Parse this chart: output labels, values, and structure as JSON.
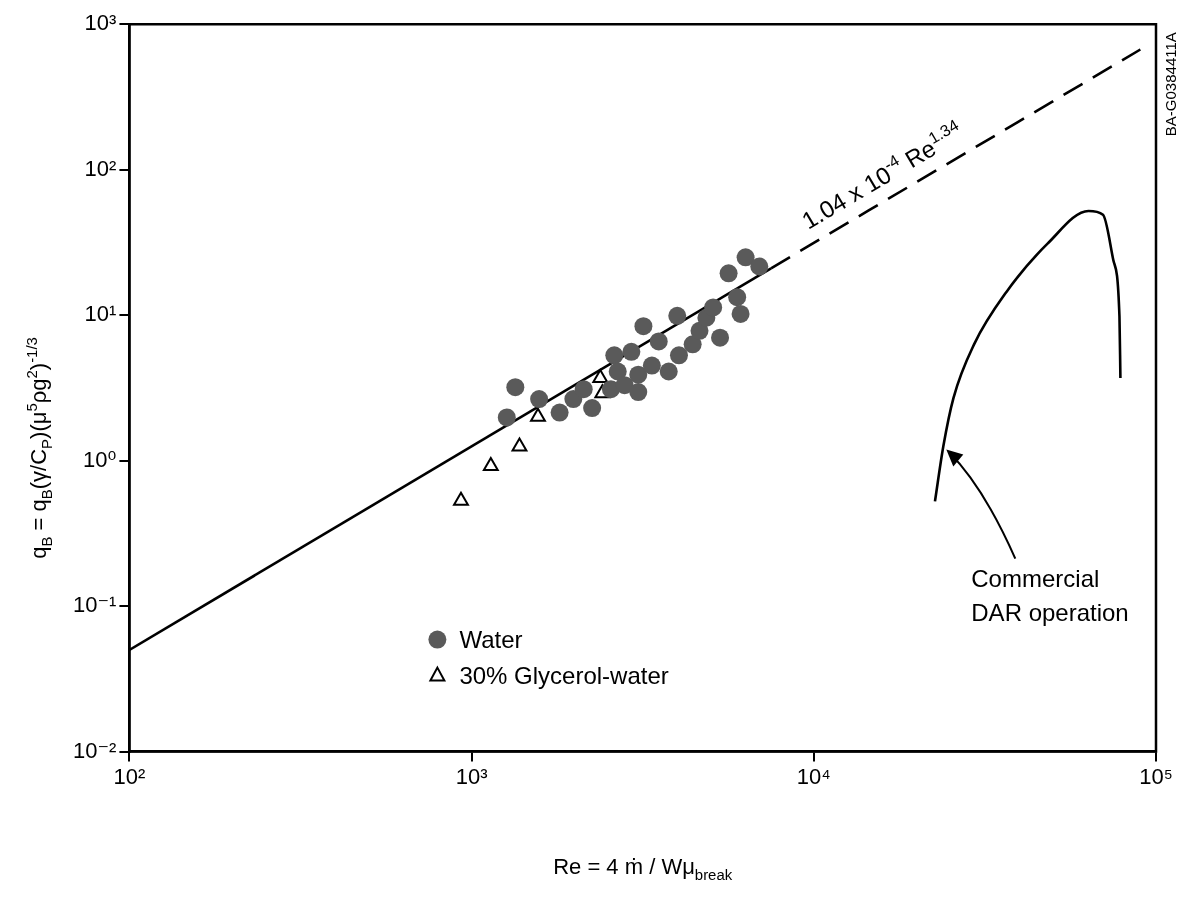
{
  "chart_data": {
    "type": "scatter",
    "xlabel": "Re = 4 ṁ / Wμ$_{break}$",
    "ylabel": "q$_{B}$ = q$_{B}$(γ/C$_{P}$)(μ$^{5}$ρg$^{2}$)$^{-1/3}$",
    "log": "xy",
    "grid": false,
    "legend": "bottom left",
    "xlim": [
      100,
      100000
    ],
    "xticks": [
      {
        "value": 100,
        "label": "10²"
      },
      {
        "value": 1000,
        "label": "10³"
      },
      {
        "value": 10000,
        "label": "10⁴"
      },
      {
        "value": 100000,
        "label": "10⁵"
      }
    ],
    "ylim": [
      0.01,
      1000
    ],
    "yticks": [
      {
        "value": 0.01,
        "label": "10⁻²"
      },
      {
        "value": 0.1,
        "label": "10⁻¹"
      },
      {
        "value": 1,
        "label": "10⁰"
      },
      {
        "value": 10,
        "label": "10¹"
      },
      {
        "value": 100,
        "label": "10²"
      },
      {
        "value": 1000,
        "label": "10³"
      }
    ],
    "series": [
      {
        "name": "Water",
        "type": "scatter",
        "marker": "circle",
        "color": "#5a5a5a",
        "x": [
          1342,
          1267,
          1575,
          1808,
          1983,
          2126,
          2250,
          2553,
          2612,
          2930,
          2673,
          2800,
          3069,
          3069,
          3177,
          3522,
          3363,
          3767,
          3990,
          4036,
          4426,
          4634,
          4853,
          5080,
          5321,
          5970,
          6110,
          5637,
          6320,
          6930
        ],
        "values": [
          3.2,
          1.98,
          2.65,
          2.14,
          2.65,
          3.1,
          2.3,
          3.1,
          5.3,
          5.6,
          4.1,
          3.3,
          3.9,
          2.96,
          8.4,
          6.6,
          4.5,
          4.1,
          9.9,
          5.3,
          6.3,
          7.8,
          9.6,
          11.3,
          7.0,
          13.3,
          10.2,
          19.4,
          25,
          21.6
        ]
      },
      {
        "name": "30% Glycerol-water",
        "type": "scatter",
        "marker": "triangle",
        "color": "#000000",
        "x": [
          931,
          1138,
          1380,
          1563,
          2377,
          2410
        ],
        "values": [
          0.53,
          0.92,
          1.25,
          2.0,
          3.7,
          2.9
        ]
      },
      {
        "type": "line",
        "marker": "none",
        "line_style": "solid",
        "color": "#000000",
        "x": [
          100,
          7500
        ],
        "values": [
          0.05,
          21
        ]
      },
      {
        "type": "line",
        "marker": "none",
        "line_style": "dashed",
        "color": "#000000",
        "x": [
          7500,
          90000
        ],
        "values": [
          21,
          670
        ]
      },
      {
        "type": "line",
        "marker": "none",
        "line_style": "solid",
        "color": "#000000",
        "x": [
          22600,
          23900,
          25600,
          29400,
          36600,
          48200,
          63500,
          70000,
          75000,
          78200,
          78700
        ],
        "values": [
          0.525,
          1.25,
          2.7,
          6.3,
          14.5,
          31,
          52,
          49,
          24,
          9.8,
          3.7
        ]
      }
    ],
    "annotations": [
      "1.04 x 10$^{-4}$ Re$^{1.34}$",
      {
        "text": "Commercial DAR operation",
        "x": 23900,
        "y": 1.25
      },
      "BA-G0384411A"
    ]
  }
}
